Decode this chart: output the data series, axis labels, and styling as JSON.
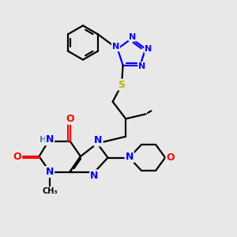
{
  "bg_color": "#e8e8e8",
  "atom_colors": {
    "C": "#000000",
    "N": "#0000ff",
    "O": "#ff0000",
    "S": "#b8b800",
    "H": "#4a8a8a"
  },
  "bond_color": "#000000",
  "bond_width": 1.6,
  "fig_size": [
    3.0,
    3.0
  ],
  "dpi": 100,
  "xlim": [
    0,
    10
  ],
  "ylim": [
    0,
    10
  ]
}
